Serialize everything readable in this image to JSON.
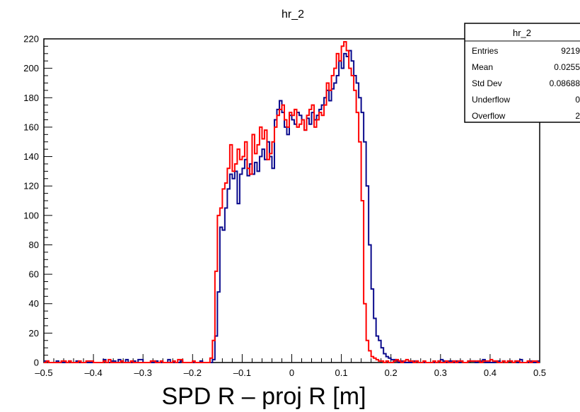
{
  "chart_data": {
    "type": "histogram",
    "title": "hr_2",
    "xlabel": "SPD R – proj R [m]",
    "ylabel": "",
    "xlim": [
      -0.5,
      0.5
    ],
    "ylim": [
      0,
      220
    ],
    "grid": false,
    "x_ticks": [
      "–0.5",
      "–0.4",
      "–0.3",
      "–0.2",
      "–0.1",
      "0",
      "0.1",
      "0.2",
      "0.3",
      "0.4",
      "0.5"
    ],
    "x_tick_values": [
      -0.5,
      -0.4,
      -0.3,
      -0.2,
      -0.1,
      0,
      0.1,
      0.2,
      0.3,
      0.4,
      0.5
    ],
    "y_ticks": [
      "0",
      "20",
      "40",
      "60",
      "80",
      "100",
      "120",
      "140",
      "160",
      "180",
      "200",
      "220"
    ],
    "y_tick_values": [
      0,
      20,
      40,
      60,
      80,
      100,
      120,
      140,
      160,
      180,
      200,
      220
    ],
    "bins": {
      "xmin": -0.5,
      "xmax": 0.5,
      "count": 200
    },
    "series": [
      {
        "name": "hr_2",
        "color": "#0a0a8c",
        "active_start": -0.16,
        "values": [
          2,
          18,
          48,
          92,
          90,
          105,
          118,
          128,
          125,
          130,
          108,
          128,
          132,
          138,
          127,
          135,
          128,
          136,
          130,
          140,
          145,
          138,
          150,
          140,
          132,
          165,
          172,
          178,
          170,
          160,
          155,
          168,
          165,
          162,
          170,
          168,
          165,
          158,
          166,
          162,
          170,
          165,
          168,
          172,
          175,
          180,
          185,
          178,
          186,
          190,
          195,
          205,
          200,
          210,
          208,
          212,
          205,
          195,
          190,
          180,
          170,
          150,
          120,
          80,
          50,
          30,
          18,
          15,
          10,
          6,
          4,
          3,
          2,
          2,
          1
        ]
      },
      {
        "name": "",
        "color": "#ff0000",
        "active_start": -0.165,
        "values": [
          3,
          15,
          62,
          100,
          105,
          118,
          122,
          132,
          148,
          130,
          135,
          145,
          138,
          140,
          150,
          132,
          128,
          155,
          142,
          148,
          160,
          152,
          158,
          138,
          142,
          150,
          160,
          168,
          172,
          175,
          165,
          160,
          170,
          168,
          172,
          160,
          162,
          165,
          158,
          168,
          172,
          175,
          160,
          165,
          170,
          168,
          175,
          190,
          185,
          195,
          200,
          210,
          205,
          215,
          218,
          212,
          200,
          195,
          185,
          170,
          150,
          110,
          40,
          15,
          8,
          4,
          3,
          2,
          1
        ]
      }
    ],
    "baseline_noise": true
  },
  "stats_box": {
    "title": "hr_2",
    "rows": [
      {
        "label": "Entries",
        "value": "9219"
      },
      {
        "label": "Mean",
        "value": "0.0255"
      },
      {
        "label": "Std Dev",
        "value": "0.08688"
      },
      {
        "label": "Underflow",
        "value": "0"
      },
      {
        "label": "Overflow",
        "value": "2"
      }
    ]
  }
}
